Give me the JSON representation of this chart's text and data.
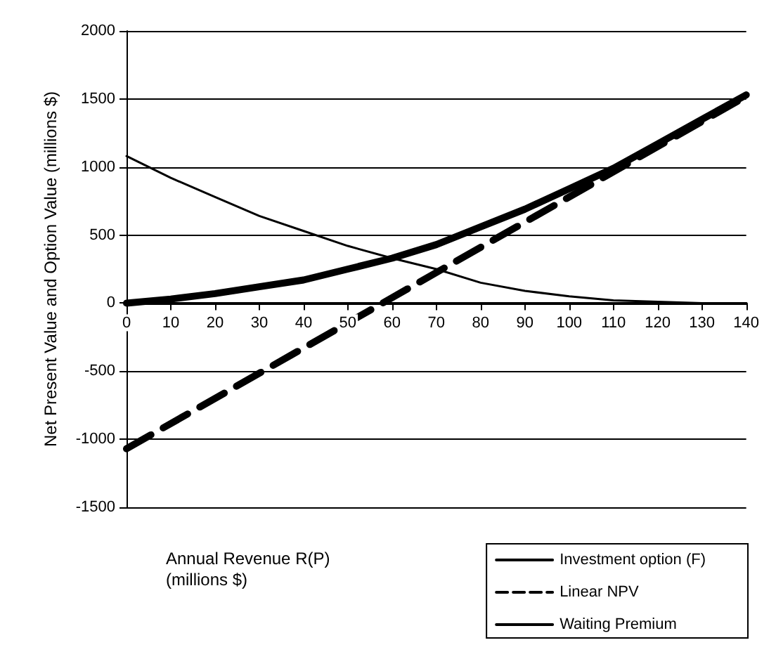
{
  "chart_data": {
    "type": "line",
    "xlabel": "Annual Revenue R(P) (millions $)",
    "ylabel": "Net Present Value and Option Value (millions $)",
    "xlim": [
      0,
      140
    ],
    "xticks": [
      0,
      10,
      20,
      30,
      40,
      50,
      60,
      70,
      80,
      90,
      100,
      110,
      120,
      130,
      140
    ],
    "ylim": [
      -1500,
      2000
    ],
    "yticks": [
      -1500,
      -1000,
      -500,
      0,
      500,
      1000,
      1500,
      2000
    ],
    "grid": "y",
    "legend": "bottom right",
    "marker": "none",
    "series": [
      {
        "name": "Investment option (F)",
        "color": "#000000",
        "line_style": "solid",
        "x": [
          0,
          10,
          20,
          30,
          40,
          50,
          60,
          70,
          80,
          90,
          100,
          110,
          120,
          130,
          140
        ],
        "values": [
          0,
          30,
          70,
          120,
          170,
          250,
          330,
          430,
          560,
          690,
          840,
          990,
          1170,
          1350,
          1530
        ]
      },
      {
        "name": "Linear NPV",
        "color": "#000000",
        "line_style": "dashed",
        "x": [
          0,
          140
        ],
        "values": [
          -1070,
          1520
        ]
      },
      {
        "name": "Waiting Premium",
        "color": "#000000",
        "line_style": "solid",
        "x": [
          0,
          10,
          20,
          30,
          40,
          50,
          60,
          70,
          80,
          90,
          100,
          110,
          120,
          130,
          140
        ],
        "values": [
          1080,
          920,
          780,
          640,
          530,
          420,
          330,
          250,
          150,
          90,
          50,
          20,
          10,
          0,
          0
        ]
      }
    ]
  }
}
